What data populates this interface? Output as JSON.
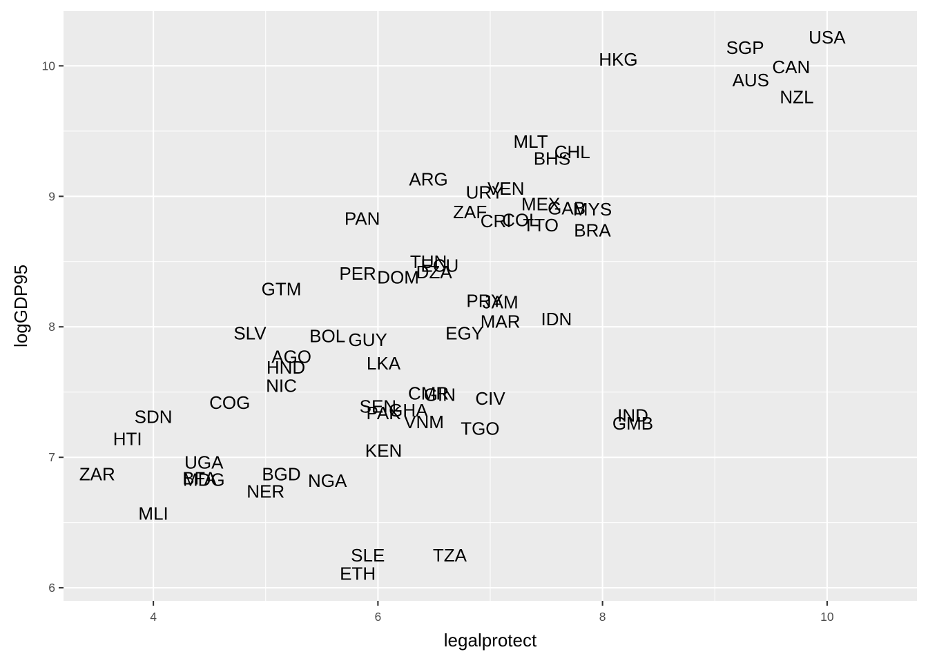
{
  "chart_data": {
    "type": "scatter",
    "title": "",
    "xlabel": "legalprotect",
    "ylabel": "logGDP95",
    "xlim": [
      3.2,
      10.8
    ],
    "ylim": [
      5.9,
      10.42
    ],
    "x_ticks": [
      4,
      6,
      8,
      10
    ],
    "y_ticks": [
      6,
      7,
      8,
      9,
      10
    ],
    "x_tick_labels": [
      "4",
      "6",
      "8",
      "10"
    ],
    "y_tick_labels": [
      "6",
      "7",
      "8",
      "9",
      "10"
    ],
    "grid": true,
    "points": [
      {
        "label": "USA",
        "x": 10.0,
        "y": 10.22
      },
      {
        "label": "SGP",
        "x": 9.27,
        "y": 10.14
      },
      {
        "label": "HKG",
        "x": 8.14,
        "y": 10.05
      },
      {
        "label": "CAN",
        "x": 9.68,
        "y": 9.99
      },
      {
        "label": "AUS",
        "x": 9.32,
        "y": 9.89
      },
      {
        "label": "NZL",
        "x": 9.73,
        "y": 9.76
      },
      {
        "label": "MLT",
        "x": 7.36,
        "y": 9.42
      },
      {
        "label": "CHL",
        "x": 7.73,
        "y": 9.34
      },
      {
        "label": "BHS",
        "x": 7.55,
        "y": 9.29
      },
      {
        "label": "ARG",
        "x": 6.45,
        "y": 9.13
      },
      {
        "label": "VEN",
        "x": 7.14,
        "y": 9.06
      },
      {
        "label": "URY",
        "x": 6.95,
        "y": 9.03
      },
      {
        "label": "MEX",
        "x": 7.45,
        "y": 8.94
      },
      {
        "label": "GAB",
        "x": 7.68,
        "y": 8.91
      },
      {
        "label": "MYS",
        "x": 7.91,
        "y": 8.9
      },
      {
        "label": "ZAF",
        "x": 6.82,
        "y": 8.88
      },
      {
        "label": "PAN",
        "x": 5.86,
        "y": 8.83
      },
      {
        "label": "CRI",
        "x": 7.05,
        "y": 8.81
      },
      {
        "label": "COL",
        "x": 7.27,
        "y": 8.82
      },
      {
        "label": "TTO",
        "x": 7.45,
        "y": 8.78
      },
      {
        "label": "BRA",
        "x": 7.91,
        "y": 8.74
      },
      {
        "label": "TUN",
        "x": 6.45,
        "y": 8.5
      },
      {
        "label": "ECU",
        "x": 6.55,
        "y": 8.47
      },
      {
        "label": "DZA",
        "x": 6.5,
        "y": 8.42
      },
      {
        "label": "PER",
        "x": 5.82,
        "y": 8.41
      },
      {
        "label": "DOM",
        "x": 6.18,
        "y": 8.38
      },
      {
        "label": "GTM",
        "x": 5.14,
        "y": 8.29
      },
      {
        "label": "PRY",
        "x": 6.95,
        "y": 8.2
      },
      {
        "label": "JAM",
        "x": 7.09,
        "y": 8.19
      },
      {
        "label": "MAR",
        "x": 7.09,
        "y": 8.04
      },
      {
        "label": "IDN",
        "x": 7.59,
        "y": 8.06
      },
      {
        "label": "SLV",
        "x": 4.86,
        "y": 7.95
      },
      {
        "label": "EGY",
        "x": 6.77,
        "y": 7.95
      },
      {
        "label": "BOL",
        "x": 5.55,
        "y": 7.93
      },
      {
        "label": "GUY",
        "x": 5.91,
        "y": 7.9
      },
      {
        "label": "AGO",
        "x": 5.23,
        "y": 7.77
      },
      {
        "label": "LKA",
        "x": 6.05,
        "y": 7.72
      },
      {
        "label": "HND",
        "x": 5.18,
        "y": 7.69
      },
      {
        "label": "NIC",
        "x": 5.14,
        "y": 7.55
      },
      {
        "label": "CMR",
        "x": 6.45,
        "y": 7.49
      },
      {
        "label": "GIN",
        "x": 6.55,
        "y": 7.48
      },
      {
        "label": "CIV",
        "x": 7.0,
        "y": 7.45
      },
      {
        "label": "COG",
        "x": 4.68,
        "y": 7.42
      },
      {
        "label": "SEN",
        "x": 6.0,
        "y": 7.39
      },
      {
        "label": "GHA",
        "x": 6.27,
        "y": 7.36
      },
      {
        "label": "PAK",
        "x": 6.05,
        "y": 7.34
      },
      {
        "label": "SDN",
        "x": 4.0,
        "y": 7.31
      },
      {
        "label": "IND",
        "x": 8.27,
        "y": 7.32
      },
      {
        "label": "GMB",
        "x": 8.27,
        "y": 7.26
      },
      {
        "label": "VNM",
        "x": 6.41,
        "y": 7.27
      },
      {
        "label": "TGO",
        "x": 6.91,
        "y": 7.22
      },
      {
        "label": "HTI",
        "x": 3.77,
        "y": 7.14
      },
      {
        "label": "KEN",
        "x": 6.05,
        "y": 7.05
      },
      {
        "label": "UGA",
        "x": 4.45,
        "y": 6.96
      },
      {
        "label": "ZAR",
        "x": 3.5,
        "y": 6.87
      },
      {
        "label": "BGD",
        "x": 5.14,
        "y": 6.87
      },
      {
        "label": "BFA",
        "x": 4.41,
        "y": 6.84
      },
      {
        "label": "MDG",
        "x": 4.45,
        "y": 6.83
      },
      {
        "label": "NGA",
        "x": 5.55,
        "y": 6.82
      },
      {
        "label": "NER",
        "x": 5.0,
        "y": 6.74
      },
      {
        "label": "MLI",
        "x": 4.0,
        "y": 6.57
      },
      {
        "label": "SLE",
        "x": 5.91,
        "y": 6.25
      },
      {
        "label": "TZA",
        "x": 6.64,
        "y": 6.25
      },
      {
        "label": "ETH",
        "x": 5.82,
        "y": 6.11
      }
    ]
  }
}
